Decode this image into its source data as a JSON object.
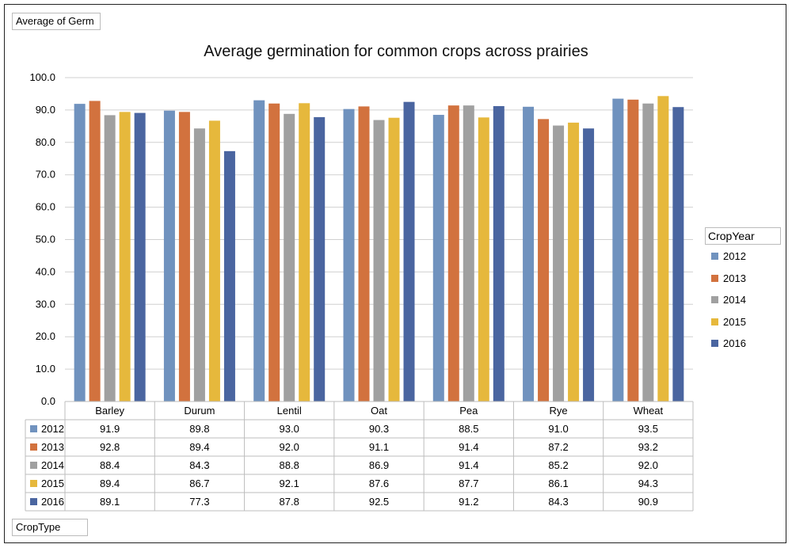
{
  "pivot": {
    "data_field_label": "Average of Germ",
    "row_field_label": "CropType",
    "column_field_label": "CropYear"
  },
  "colors": {
    "2012": "#7092be",
    "2013": "#d2723e",
    "2014": "#a0a0a0",
    "2015": "#e6b83c",
    "2016": "#4a65a0"
  },
  "chart_data": {
    "type": "bar",
    "title": "Average germination for common crops across prairies",
    "xlabel": "",
    "ylabel": "",
    "ylim": [
      0,
      100
    ],
    "ytick_labels": [
      "0.0",
      "10.0",
      "20.0",
      "30.0",
      "40.0",
      "50.0",
      "60.0",
      "70.0",
      "80.0",
      "90.0",
      "100.0"
    ],
    "grid": true,
    "legend_position": "right",
    "categories": [
      "Barley",
      "Durum",
      "Lentil",
      "Oat",
      "Pea",
      "Rye",
      "Wheat"
    ],
    "series": [
      {
        "name": "2012",
        "values": [
          91.9,
          89.8,
          93.0,
          90.3,
          88.5,
          91.0,
          93.5
        ],
        "labels": [
          "91.9",
          "89.8",
          "93.0",
          "90.3",
          "88.5",
          "91.0",
          "93.5"
        ]
      },
      {
        "name": "2013",
        "values": [
          92.8,
          89.4,
          92.0,
          91.1,
          91.4,
          87.2,
          93.2
        ],
        "labels": [
          "92.8",
          "89.4",
          "92.0",
          "91.1",
          "91.4",
          "87.2",
          "93.2"
        ]
      },
      {
        "name": "2014",
        "values": [
          88.4,
          84.3,
          88.8,
          86.9,
          91.4,
          85.2,
          92.0
        ],
        "labels": [
          "88.4",
          "84.3",
          "88.8",
          "86.9",
          "91.4",
          "85.2",
          "92.0"
        ]
      },
      {
        "name": "2015",
        "values": [
          89.4,
          86.7,
          92.1,
          87.6,
          87.7,
          86.1,
          94.3
        ],
        "labels": [
          "89.4",
          "86.7",
          "92.1",
          "87.6",
          "87.7",
          "86.1",
          "94.3"
        ]
      },
      {
        "name": "2016",
        "values": [
          89.1,
          77.3,
          87.8,
          92.5,
          91.2,
          84.3,
          90.9
        ],
        "labels": [
          "89.1",
          "77.3",
          "87.8",
          "92.5",
          "91.2",
          "84.3",
          "90.9"
        ]
      }
    ]
  }
}
